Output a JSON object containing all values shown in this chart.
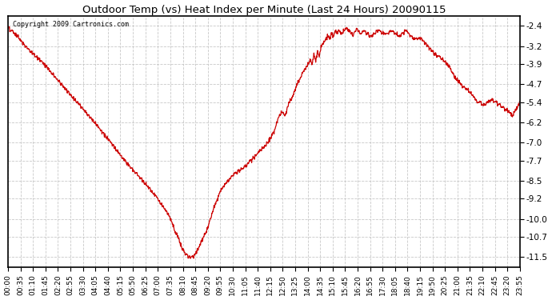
{
  "title": "Outdoor Temp (vs) Heat Index per Minute (Last 24 Hours) 20090115",
  "copyright": "Copyright 2009 Cartronics.com",
  "line_color": "#cc0000",
  "bg_color": "#ffffff",
  "plot_bg_color": "#ffffff",
  "grid_color": "#bbbbbb",
  "yticks": [
    -2.4,
    -3.2,
    -3.9,
    -4.7,
    -5.4,
    -6.2,
    -7.0,
    -7.7,
    -8.5,
    -9.2,
    -10.0,
    -10.7,
    -11.5
  ],
  "ylim": [
    -11.9,
    -2.0
  ],
  "xtick_labels": [
    "00:00",
    "00:35",
    "01:10",
    "01:45",
    "02:20",
    "02:55",
    "03:30",
    "04:05",
    "04:40",
    "05:15",
    "05:50",
    "06:25",
    "07:00",
    "07:35",
    "08:10",
    "08:45",
    "09:20",
    "09:55",
    "10:30",
    "11:05",
    "11:40",
    "12:15",
    "12:50",
    "13:25",
    "14:00",
    "14:35",
    "15:10",
    "15:45",
    "16:20",
    "16:55",
    "17:30",
    "18:05",
    "18:40",
    "19:15",
    "19:50",
    "20:25",
    "21:00",
    "21:35",
    "22:10",
    "22:45",
    "23:20",
    "23:55"
  ],
  "waypoints_x": [
    0,
    20,
    50,
    100,
    150,
    200,
    250,
    300,
    340,
    380,
    420,
    450,
    460,
    470,
    480,
    490,
    500,
    510,
    520,
    525,
    530,
    540,
    560,
    580,
    600,
    630,
    660,
    690,
    710,
    730,
    750,
    760,
    770,
    780,
    790,
    800,
    810,
    820,
    830,
    840,
    845,
    850,
    855,
    860,
    865,
    870,
    875,
    880,
    890,
    900,
    905,
    910,
    915,
    920,
    925,
    930,
    940,
    950,
    960,
    970,
    980,
    990,
    1000,
    1020,
    1040,
    1060,
    1080,
    1100,
    1120,
    1140,
    1160,
    1180,
    1200,
    1220,
    1240,
    1260,
    1280,
    1300,
    1320,
    1340,
    1360,
    1380,
    1400,
    1420,
    1439
  ],
  "waypoints_y": [
    -2.5,
    -2.7,
    -3.2,
    -3.9,
    -4.7,
    -5.5,
    -6.3,
    -7.2,
    -7.9,
    -8.5,
    -9.2,
    -9.8,
    -10.1,
    -10.5,
    -10.8,
    -11.2,
    -11.4,
    -11.5,
    -11.5,
    -11.4,
    -11.3,
    -11.0,
    -10.4,
    -9.5,
    -8.8,
    -8.3,
    -8.0,
    -7.6,
    -7.3,
    -7.0,
    -6.5,
    -6.0,
    -5.8,
    -5.9,
    -5.4,
    -5.2,
    -4.8,
    -4.5,
    -4.2,
    -4.0,
    -3.9,
    -3.7,
    -3.9,
    -3.5,
    -3.8,
    -3.4,
    -3.6,
    -3.2,
    -3.0,
    -2.8,
    -2.9,
    -2.7,
    -2.8,
    -2.6,
    -2.7,
    -2.6,
    -2.7,
    -2.5,
    -2.6,
    -2.8,
    -2.5,
    -2.7,
    -2.6,
    -2.8,
    -2.6,
    -2.7,
    -2.6,
    -2.8,
    -2.6,
    -2.9,
    -2.9,
    -3.2,
    -3.5,
    -3.7,
    -4.0,
    -4.5,
    -4.8,
    -5.0,
    -5.4,
    -5.5,
    -5.3,
    -5.5,
    -5.7,
    -5.9,
    -5.4
  ]
}
